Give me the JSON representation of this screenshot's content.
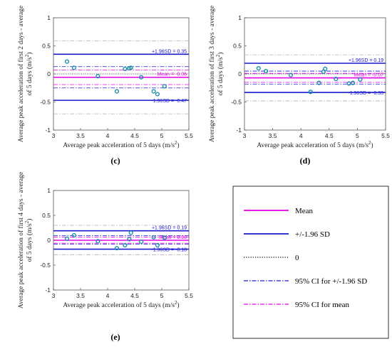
{
  "colors": {
    "mean": "#e600e6",
    "sd": "#1a1acc",
    "zero": "#000000",
    "ci_sd": "#1a1acc",
    "ci_mean": "#e600e6",
    "ci_gray": "#b0b0b0",
    "point": "#1f8fa8"
  },
  "legend": {
    "items": [
      {
        "key": "mean",
        "label": "Mean",
        "style": "solid",
        "color": "#e600e6"
      },
      {
        "key": "sd",
        "label": "+/-1.96 SD",
        "style": "solid",
        "color": "#1a1acc"
      },
      {
        "key": "zero",
        "label": "0",
        "style": "dotted",
        "color": "#000000"
      },
      {
        "key": "ci_sd",
        "label": "95% CI for +/-1.96 SD",
        "style": "dashdot",
        "color": "#1a1acc"
      },
      {
        "key": "ci_mean",
        "label": "95% CI for mean",
        "style": "dashdot",
        "color": "#e600e6"
      }
    ]
  },
  "chart_data": [
    {
      "type": "scatter",
      "panel_label": "(c)",
      "xlabel": "Average peak acceleration of 5 days (m/s",
      "xlabel_sup": "2",
      "xlabel_end": ")",
      "ylabel_line1": "Average peak acceleration of first 2 days - average",
      "ylabel_line2": "of 5 days (m/s",
      "ylabel_sup": "2",
      "ylabel_end": ")",
      "xlim": [
        3,
        5.5
      ],
      "ylim": [
        -1,
        1
      ],
      "xticks": [
        "3",
        "3.5",
        "4",
        "4.5",
        "5",
        "5.5"
      ],
      "yticks": [
        "1",
        "0.5",
        "0",
        "-0.5",
        "-1"
      ],
      "mean": -0.06,
      "upper_sd": 0.35,
      "lower_sd": -0.47,
      "mean_label": "Mean = -0.06",
      "upper_label": "+1.96SD = 0.35",
      "lower_label": "-1.96SD = -0.47",
      "ci_mean": [
        -0.19,
        0.07
      ],
      "ci_sd_upper": [
        0.13,
        0.59
      ],
      "ci_sd_lower": [
        -0.71,
        -0.25
      ],
      "points": [
        {
          "x": 3.25,
          "y": 0.22
        },
        {
          "x": 3.38,
          "y": 0.11
        },
        {
          "x": 3.82,
          "y": -0.04
        },
        {
          "x": 4.17,
          "y": -0.31
        },
        {
          "x": 4.32,
          "y": 0.09
        },
        {
          "x": 4.4,
          "y": 0.1
        },
        {
          "x": 4.43,
          "y": 0.11
        },
        {
          "x": 4.62,
          "y": -0.06
        },
        {
          "x": 4.85,
          "y": -0.31
        },
        {
          "x": 4.92,
          "y": -0.36
        },
        {
          "x": 5.05,
          "y": -0.22
        }
      ]
    },
    {
      "type": "scatter",
      "panel_label": "(d)",
      "xlabel": "Average peak acceleration of 5 days (m/s",
      "xlabel_sup": "2",
      "xlabel_end": ")",
      "ylabel_line1": "Average peak acceleration of first 3 days - average",
      "ylabel_line2": "of 5 days (m/s",
      "ylabel_sup": "2",
      "ylabel_end": ")",
      "xlim": [
        3,
        5.5
      ],
      "ylim": [
        -1,
        1
      ],
      "xticks": [
        "3",
        "3.5",
        "4",
        "4.5",
        "5",
        "5.5"
      ],
      "yticks": [
        "1",
        "0.5",
        "0",
        "-0.5",
        "-1"
      ],
      "mean": -0.07,
      "upper_sd": 0.19,
      "lower_sd": -0.33,
      "mean_label": "Mean = -0.07",
      "upper_label": "+1.96SD = 0.19",
      "lower_label": "-1.96SD = -0.33",
      "ci_mean": [
        -0.15,
        0.01
      ],
      "ci_sd_upper": [
        0.05,
        0.34
      ],
      "ci_sd_lower": [
        -0.48,
        -0.18
      ],
      "points": [
        {
          "x": 3.25,
          "y": 0.1
        },
        {
          "x": 3.38,
          "y": 0.05
        },
        {
          "x": 3.82,
          "y": -0.02
        },
        {
          "x": 4.17,
          "y": -0.32
        },
        {
          "x": 4.32,
          "y": -0.16
        },
        {
          "x": 4.4,
          "y": 0.04
        },
        {
          "x": 4.43,
          "y": 0.09
        },
        {
          "x": 4.62,
          "y": -0.09
        },
        {
          "x": 4.85,
          "y": -0.17
        },
        {
          "x": 4.92,
          "y": -0.16
        },
        {
          "x": 5.05,
          "y": -0.1
        }
      ]
    },
    {
      "type": "scatter",
      "panel_label": "(e)",
      "xlabel": "Average peak acceleration of 5 days (m/s",
      "xlabel_sup": "2",
      "xlabel_end": ")",
      "ylabel_line1": "Average peak acceleration of first 4 days - average",
      "ylabel_line2": "of 5 days (m/s",
      "ylabel_sup": "2",
      "ylabel_end": ")",
      "xlim": [
        3,
        5.5
      ],
      "ylim": [
        -1,
        1
      ],
      "xticks": [
        "3",
        "3.5",
        "4",
        "4.5",
        "5",
        "5.5"
      ],
      "yticks": [
        "1",
        "0.5",
        "0",
        "-0.5",
        "-1"
      ],
      "mean": 0.0,
      "upper_sd": 0.19,
      "lower_sd": -0.18,
      "mean_label": "Mean = 0.00",
      "upper_label": "+1.96SD = 0.19",
      "lower_label": "-1.96SD = -0.18",
      "ci_mean": [
        -0.06,
        0.06
      ],
      "ci_sd_upper": [
        0.09,
        0.3
      ],
      "ci_sd_lower": [
        -0.29,
        -0.08
      ],
      "points": [
        {
          "x": 3.25,
          "y": 0.03
        },
        {
          "x": 3.38,
          "y": 0.1
        },
        {
          "x": 3.82,
          "y": -0.02
        },
        {
          "x": 4.17,
          "y": -0.16
        },
        {
          "x": 4.32,
          "y": -0.1
        },
        {
          "x": 4.4,
          "y": 0.02
        },
        {
          "x": 4.43,
          "y": 0.15
        },
        {
          "x": 4.62,
          "y": -0.03
        },
        {
          "x": 4.85,
          "y": 0.06
        },
        {
          "x": 4.92,
          "y": -0.1
        },
        {
          "x": 5.05,
          "y": 0.05
        }
      ]
    }
  ]
}
